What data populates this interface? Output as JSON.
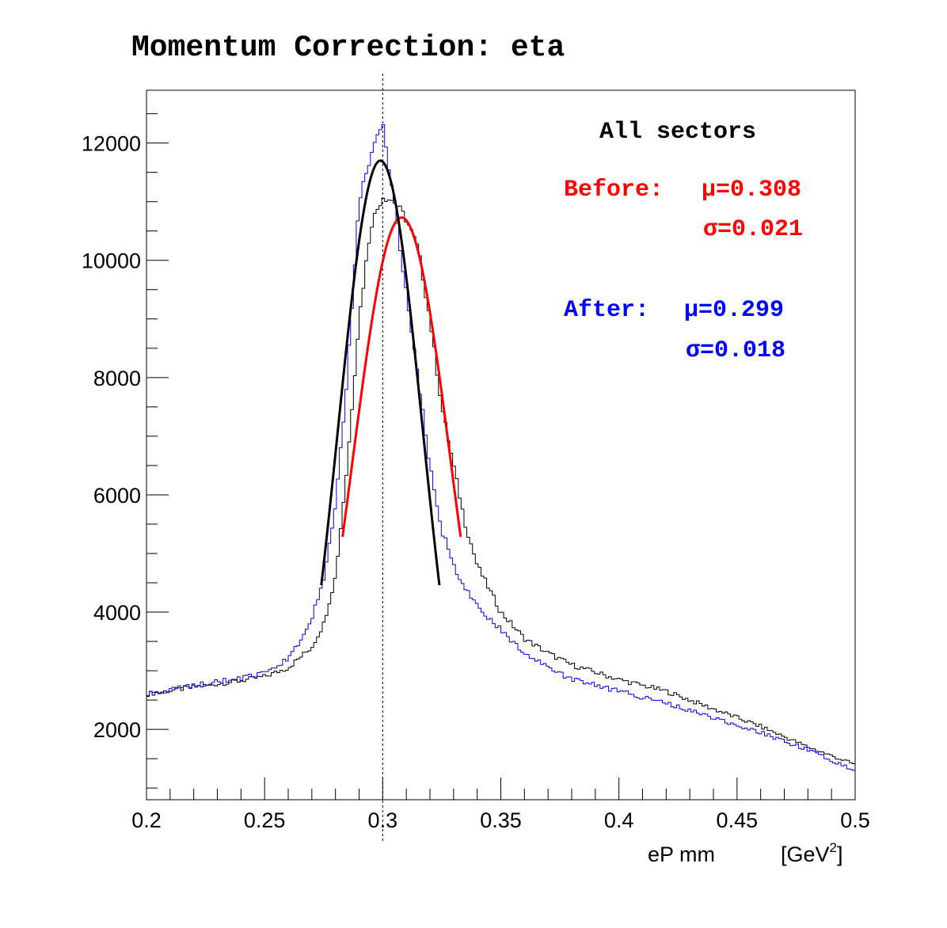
{
  "chart_data": {
    "type": "line",
    "title": "Momentum Correction: eta",
    "xlabel": "eP mm",
    "xunit": "[GeV",
    "xunit_sup": "2",
    "xunit_close": "]",
    "ylabel": "",
    "xlim": [
      0.2,
      0.5
    ],
    "ylim": [
      800,
      12900
    ],
    "x_ticks": [
      0.2,
      0.25,
      0.3,
      0.35,
      0.4,
      0.45,
      0.5
    ],
    "x_tick_labels": [
      "0.2",
      "0.25",
      "0.3",
      "0.35",
      "0.4",
      "0.45",
      "0.5"
    ],
    "y_ticks": [
      2000,
      4000,
      6000,
      8000,
      10000,
      12000
    ],
    "y_tick_labels": [
      "2000",
      "4000",
      "6000",
      "8000",
      "10000",
      "12000"
    ],
    "reference_line_x": 0.3,
    "grid": false,
    "legend": {
      "heading": "All sectors",
      "before_label": "Before:",
      "before_mu": "μ=0.308",
      "before_sigma": "σ=0.021",
      "after_label": "After:",
      "after_mu": "μ=0.299",
      "after_sigma": "σ=0.018"
    },
    "series": [
      {
        "key": "before_hist",
        "color": "#000000",
        "x": [
          0.2,
          0.22,
          0.24,
          0.25,
          0.26,
          0.27,
          0.275,
          0.28,
          0.285,
          0.29,
          0.295,
          0.3,
          0.305,
          0.31,
          0.315,
          0.32,
          0.325,
          0.33,
          0.335,
          0.34,
          0.35,
          0.36,
          0.37,
          0.38,
          0.4,
          0.42,
          0.44,
          0.46,
          0.48,
          0.5
        ],
        "values": [
          2600,
          2720,
          2830,
          2900,
          3050,
          3400,
          3800,
          4600,
          6500,
          9000,
          10600,
          11100,
          11000,
          10700,
          10200,
          9000,
          7500,
          6500,
          5500,
          4800,
          4000,
          3550,
          3300,
          3100,
          2850,
          2650,
          2350,
          2050,
          1700,
          1400
        ]
      },
      {
        "key": "after_hist",
        "color": "#0000ff",
        "x": [
          0.2,
          0.22,
          0.24,
          0.25,
          0.26,
          0.265,
          0.27,
          0.275,
          0.28,
          0.285,
          0.29,
          0.295,
          0.3,
          0.305,
          0.31,
          0.315,
          0.32,
          0.325,
          0.33,
          0.335,
          0.34,
          0.35,
          0.36,
          0.37,
          0.38,
          0.4,
          0.42,
          0.44,
          0.46,
          0.48,
          0.5
        ],
        "values": [
          2600,
          2750,
          2870,
          2950,
          3200,
          3500,
          3900,
          4600,
          5800,
          8000,
          11000,
          11800,
          12300,
          11000,
          9400,
          8000,
          6500,
          5400,
          4800,
          4400,
          4100,
          3700,
          3300,
          3050,
          2850,
          2650,
          2450,
          2200,
          1950,
          1650,
          1300
        ]
      },
      {
        "key": "before_fit",
        "color": "#ff0000",
        "fit": "gaussian",
        "amplitude": 10730,
        "mu": 0.308,
        "sigma": 0.021,
        "range": [
          0.283,
          0.333
        ]
      },
      {
        "key": "after_fit",
        "color": "#000000",
        "fit": "gaussian",
        "amplitude": 11700,
        "mu": 0.299,
        "sigma": 0.018,
        "range": [
          0.274,
          0.324
        ]
      }
    ]
  },
  "colors": {
    "before": "#ff0000",
    "after": "#0000ff",
    "axis": "#000000"
  }
}
